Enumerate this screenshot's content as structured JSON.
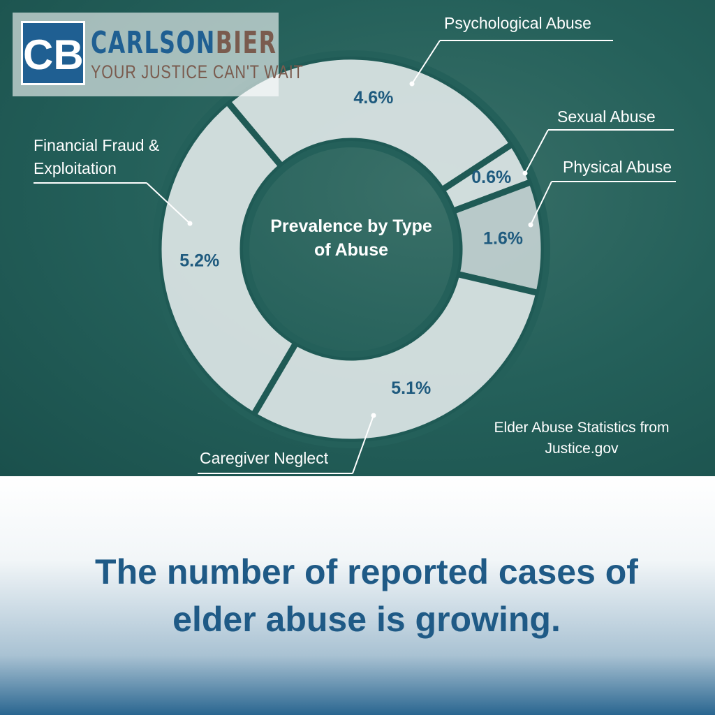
{
  "logo": {
    "initials": "CB",
    "name_first": "CARLSON",
    "name_second": "BIER",
    "tagline": "YOUR JUSTICE CAN'T WAIT"
  },
  "chart_data": {
    "type": "donut",
    "title": "Prevalence by Type of Abuse",
    "categories": [
      "Psychological Abuse",
      "Sexual Abuse",
      "Physical Abuse",
      "Caregiver Neglect",
      "Financial Fraud & Exploitation"
    ],
    "values": [
      4.6,
      0.6,
      1.6,
      5.1,
      5.2
    ],
    "value_labels": [
      "4.6%",
      "0.6%",
      "1.6%",
      "5.1%",
      "5.2%"
    ],
    "colors": [
      "#dde6e6",
      "#dde6e6",
      "#c3d1d1",
      "#dde6e6",
      "#dde6e6"
    ],
    "source": "Elder Abuse Statistics from Justice.gov"
  },
  "headline": "The number of reported cases of elder abuse is growing."
}
